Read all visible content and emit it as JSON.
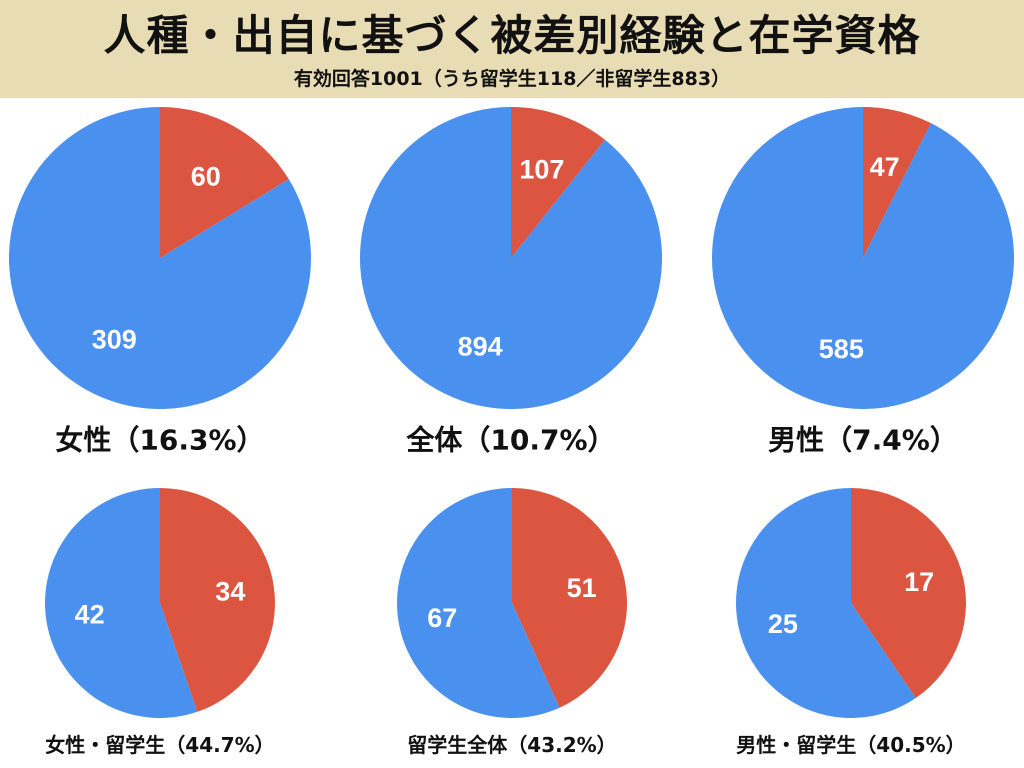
{
  "header": {
    "title": "人種・出自に基づく被差別経験と在学資格",
    "subtitle": "有効回答1001（うち留学生118／非留学生883）"
  },
  "colors": {
    "experienced": "#dc5540",
    "not_experienced": "#4a90ee",
    "header_bg": "#e8dcb5"
  },
  "chart_data": [
    {
      "type": "pie",
      "title": "女性（16.3%）",
      "slices": [
        {
          "color": "#dc5540",
          "value": 60,
          "label": "60"
        },
        {
          "color": "#4a90ee",
          "value": 309,
          "label": "309"
        }
      ]
    },
    {
      "type": "pie",
      "title": "全体（10.7%）",
      "slices": [
        {
          "color": "#dc5540",
          "value": 107,
          "label": "107"
        },
        {
          "color": "#4a90ee",
          "value": 894,
          "label": "894"
        }
      ]
    },
    {
      "type": "pie",
      "title": "男性（7.4%）",
      "slices": [
        {
          "color": "#dc5540",
          "value": 47,
          "label": "47"
        },
        {
          "color": "#4a90ee",
          "value": 585,
          "label": "585"
        }
      ]
    },
    {
      "type": "pie",
      "title": "女性・留学生（44.7%）",
      "slices": [
        {
          "color": "#dc5540",
          "value": 34,
          "label": "34"
        },
        {
          "color": "#4a90ee",
          "value": 42,
          "label": "42"
        }
      ]
    },
    {
      "type": "pie",
      "title": "留学生全体（43.2%）",
      "slices": [
        {
          "color": "#dc5540",
          "value": 51,
          "label": "51"
        },
        {
          "color": "#4a90ee",
          "value": 67,
          "label": "67"
        }
      ]
    },
    {
      "type": "pie",
      "title": "男性・留学生（40.5%）",
      "slices": [
        {
          "color": "#dc5540",
          "value": 17,
          "label": "17"
        },
        {
          "color": "#4a90ee",
          "value": 25,
          "label": "25"
        }
      ]
    }
  ]
}
